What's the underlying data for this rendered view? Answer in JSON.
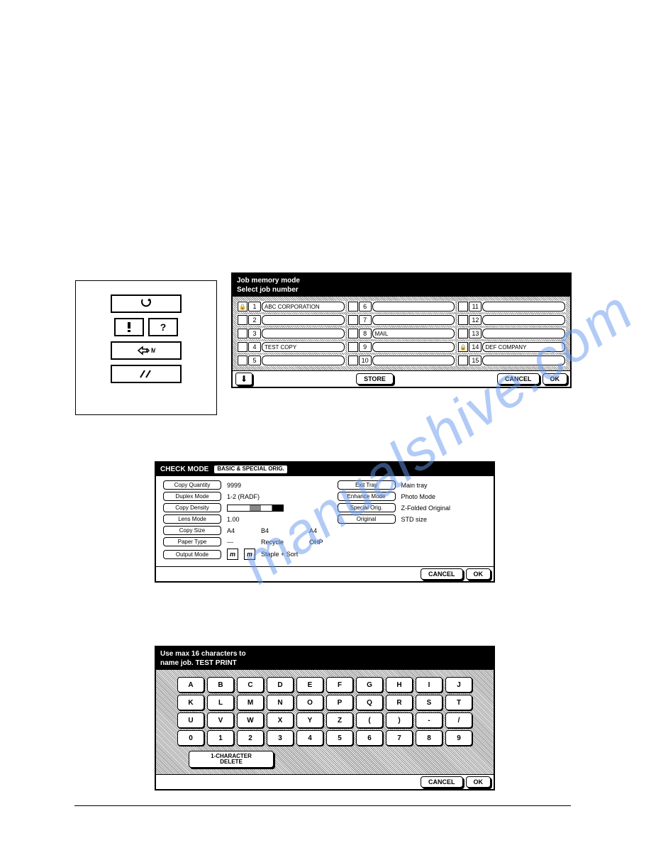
{
  "panel1": {
    "title_line1": "Job memory mode",
    "title_line2": "Select job number",
    "jobs": [
      {
        "lock": true,
        "num": "1",
        "name": "ABC CORPORATION"
      },
      {
        "lock": false,
        "num": "2",
        "name": ""
      },
      {
        "lock": false,
        "num": "3",
        "name": ""
      },
      {
        "lock": false,
        "num": "4",
        "name": "TEST COPY"
      },
      {
        "lock": false,
        "num": "5",
        "name": ""
      },
      {
        "lock": false,
        "num": "6",
        "name": ""
      },
      {
        "lock": false,
        "num": "7",
        "name": ""
      },
      {
        "lock": false,
        "num": "8",
        "name": "MAIL"
      },
      {
        "lock": false,
        "num": "9",
        "name": ""
      },
      {
        "lock": false,
        "num": "10",
        "name": ""
      },
      {
        "lock": false,
        "num": "11",
        "name": ""
      },
      {
        "lock": false,
        "num": "12",
        "name": ""
      },
      {
        "lock": false,
        "num": "13",
        "name": ""
      },
      {
        "lock": true,
        "num": "14",
        "name": "DEF COMPANY"
      },
      {
        "lock": false,
        "num": "15",
        "name": ""
      }
    ],
    "store": "STORE",
    "cancel": "CANCEL",
    "ok": "OK"
  },
  "panel2": {
    "title": "CHECK MODE",
    "tab": "BASIC  & SPECIAL ORIG.",
    "left": {
      "copy_qty_l": "Copy Quantity",
      "copy_qty_v": "9999",
      "duplex_l": "Duplex Mode",
      "duplex_v": "1-2  (RADF)",
      "density_l": "Copy Density",
      "lens_l": "Lens Mode",
      "lens_v": "1.00",
      "size_l": "Copy Size",
      "size_v1": "A4",
      "size_v2": "B4",
      "size_v3": "A4",
      "paper_l": "Paper Type",
      "paper_v1": "---",
      "paper_v2": "Recycle",
      "paper_v3": "OHP",
      "output_l": "Output Mode",
      "output_v": "Staple + Sort"
    },
    "right": {
      "exit_l": "Exit Tray",
      "exit_v": "Main tray",
      "enhance_l": "Enhance Mode",
      "enhance_v": "Photo Mode",
      "special_l": "Special Orig.",
      "special_v": "Z-Folded Original",
      "orig_l": "Original",
      "orig_v": "STD size"
    },
    "cancel": "CANCEL",
    "ok": "OK"
  },
  "panel3": {
    "title_line1": "Use max 16 characters to",
    "title_line2": "name job. TEST PRINT",
    "rows": [
      [
        "A",
        "B",
        "C",
        "D",
        "E",
        "F",
        "G",
        "H",
        "I",
        "J"
      ],
      [
        "K",
        "L",
        "M",
        "N",
        "O",
        "P",
        "Q",
        "R",
        "S",
        "T"
      ],
      [
        "U",
        "V",
        "W",
        "X",
        "Y",
        "Z",
        "(",
        ")",
        "-",
        "/"
      ],
      [
        "0",
        "1",
        "2",
        "3",
        "4",
        "5",
        "6",
        "7",
        "8",
        "9"
      ]
    ],
    "del": "1-CHARACTER\nDELETE",
    "cancel": "CANCEL",
    "ok": "OK"
  }
}
